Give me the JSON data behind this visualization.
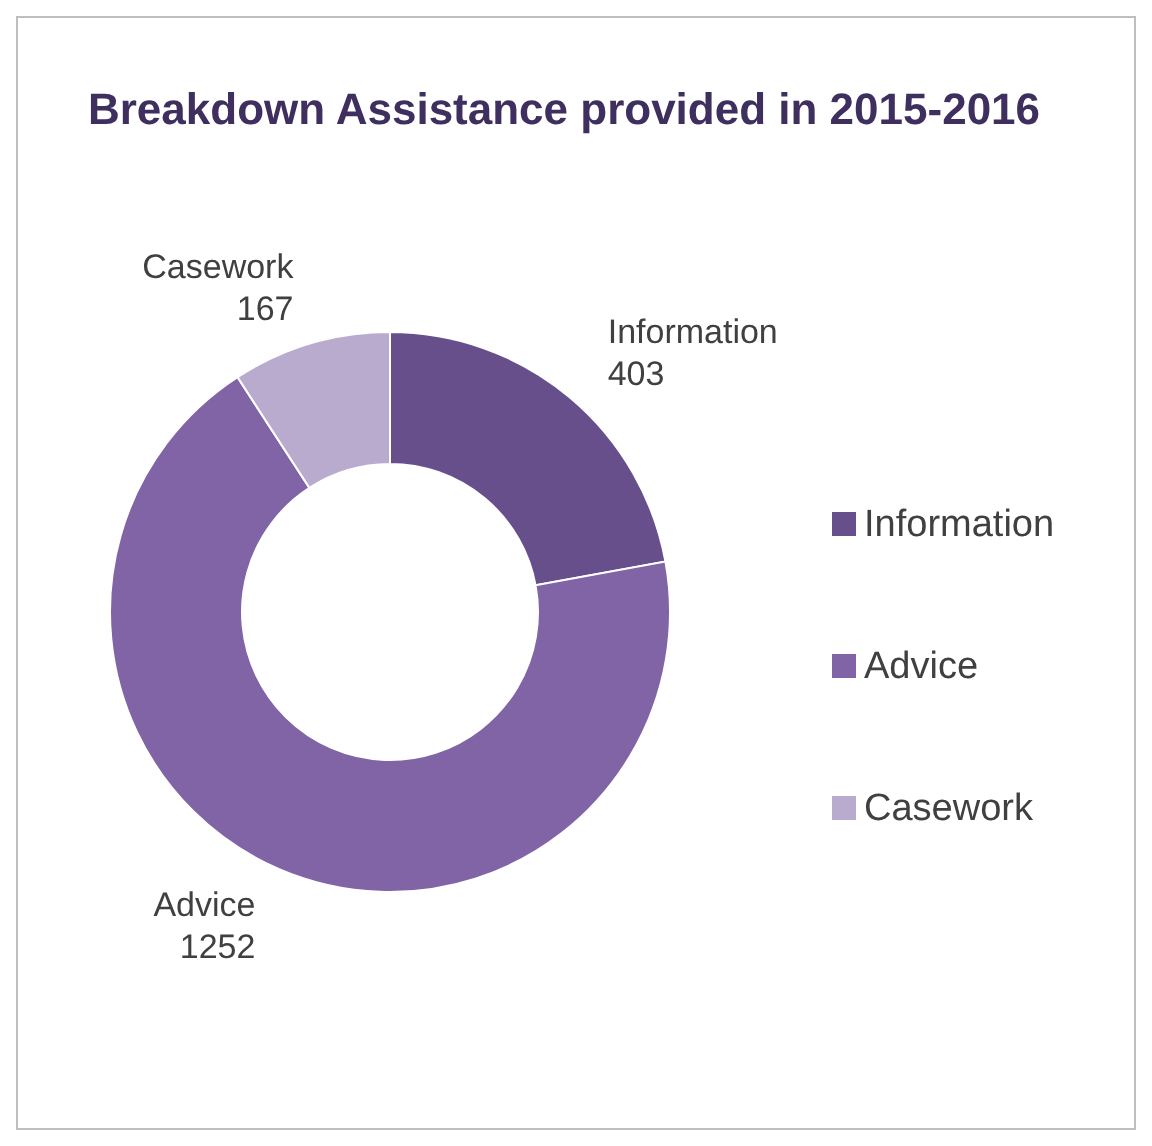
{
  "chart_data": {
    "type": "donut",
    "title": "Breakdown Assistance provided in 2015-2016",
    "categories": [
      "Information",
      "Advice",
      "Casework"
    ],
    "values": [
      403,
      1252,
      167
    ],
    "colors": [
      "#664f8a",
      "#8064a6",
      "#b9abce"
    ],
    "data_labels": true,
    "legend": "right"
  }
}
